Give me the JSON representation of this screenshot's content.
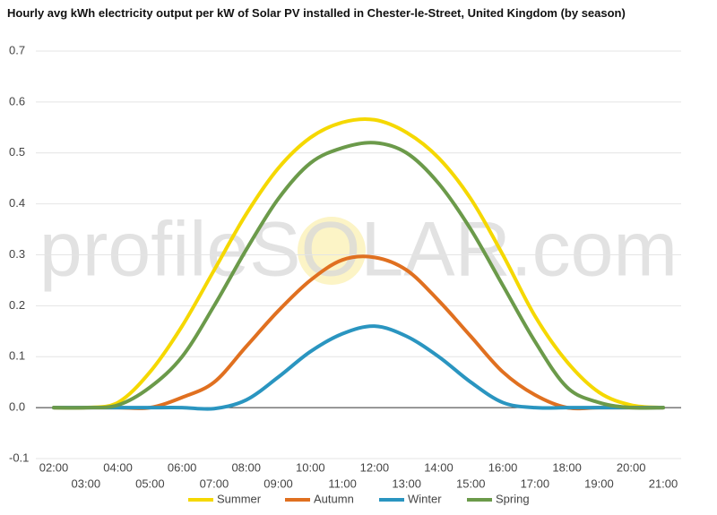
{
  "chart_data": {
    "type": "line",
    "title": "Hourly avg kWh electricity output per kW of Solar PV installed in Chester-le-Street, United Kingdom (by season)",
    "watermark": "profileSOLAR.com",
    "categories": [
      "02:00",
      "03:00",
      "04:00",
      "05:00",
      "06:00",
      "07:00",
      "08:00",
      "09:00",
      "10:00",
      "11:00",
      "12:00",
      "13:00",
      "14:00",
      "15:00",
      "16:00",
      "17:00",
      "18:00",
      "19:00",
      "20:00",
      "21:00"
    ],
    "series": [
      {
        "name": "Summer",
        "color": "#f5d800",
        "values": [
          0,
          0,
          0.01,
          0.07,
          0.16,
          0.27,
          0.38,
          0.47,
          0.53,
          0.56,
          0.565,
          0.54,
          0.49,
          0.41,
          0.3,
          0.18,
          0.09,
          0.03,
          0.005,
          0
        ]
      },
      {
        "name": "Autumn",
        "color": "#e07020",
        "values": [
          0,
          0,
          0,
          0,
          0.02,
          0.05,
          0.12,
          0.19,
          0.25,
          0.29,
          0.295,
          0.27,
          0.21,
          0.14,
          0.07,
          0.025,
          0,
          0,
          0,
          0
        ]
      },
      {
        "name": "Winter",
        "color": "#2a95c0",
        "values": [
          0,
          0,
          0,
          0,
          0,
          -0.002,
          0.015,
          0.06,
          0.11,
          0.145,
          0.16,
          0.14,
          0.1,
          0.05,
          0.01,
          0,
          0,
          0,
          0,
          0
        ]
      },
      {
        "name": "Spring",
        "color": "#6b9a4a",
        "values": [
          0,
          0,
          0.005,
          0.04,
          0.1,
          0.2,
          0.31,
          0.41,
          0.48,
          0.51,
          0.52,
          0.5,
          0.44,
          0.35,
          0.24,
          0.13,
          0.04,
          0.01,
          0,
          0
        ]
      }
    ],
    "ylim": [
      -0.1,
      0.7
    ],
    "yticks": [
      -0.1,
      {
        "value": 0,
        "label": "0.0"
      },
      0.1,
      0.2,
      0.3,
      0.4,
      0.5,
      0.6,
      0.7
    ],
    "grid": true,
    "legend": "bottom"
  }
}
